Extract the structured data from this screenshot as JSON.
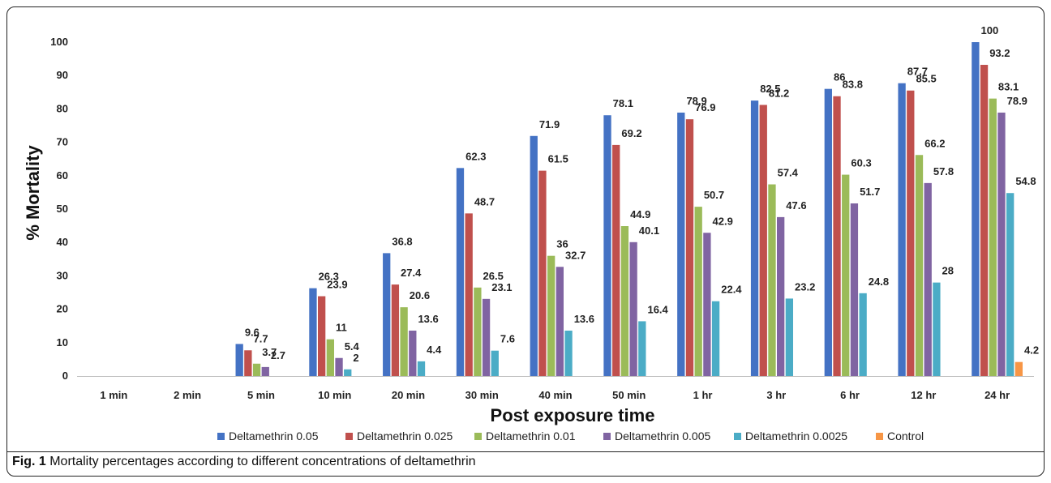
{
  "figure": {
    "caption_label": "Fig. 1",
    "caption_text": " Mortality percentages according to different concentrations of deltamethrin"
  },
  "chart_data": {
    "type": "bar",
    "title": "",
    "xlabel": "Post exposure time",
    "ylabel": "% Mortality",
    "ylim": [
      0,
      100
    ],
    "yticks": [
      0,
      10,
      20,
      30,
      40,
      50,
      60,
      70,
      80,
      90,
      100
    ],
    "grid": false,
    "legend_position": "bottom",
    "categories": [
      "1 min",
      "2 min",
      "5 min",
      "10 min",
      "20 min",
      "30 min",
      "40 min",
      "50 min",
      "1 hr",
      "3 hr",
      "6 hr",
      "12 hr",
      "24 hr"
    ],
    "series": [
      {
        "name": "Deltamethrin 0.05",
        "color": "#4472C4",
        "values": [
          0,
          0,
          9.6,
          26.3,
          36.8,
          62.3,
          71.9,
          78.1,
          78.9,
          82.5,
          86,
          87.7,
          100
        ],
        "labels": [
          null,
          null,
          "9.6",
          "26.3",
          "36.8",
          "62.3",
          "71.9",
          "78.1",
          "78.9",
          "82.5",
          "86",
          "87.7",
          "100"
        ]
      },
      {
        "name": "Deltamethrin 0.025",
        "color": "#C0504D",
        "values": [
          0,
          0,
          7.7,
          23.9,
          27.4,
          48.7,
          61.5,
          69.2,
          76.9,
          81.2,
          83.8,
          85.5,
          93.2
        ],
        "labels": [
          null,
          null,
          "7.7",
          "23.9",
          "27.4",
          "48.7",
          "61.5",
          "69.2",
          "76.9",
          "81.2",
          "83.8",
          "85.5",
          "93.2"
        ]
      },
      {
        "name": "Deltamethrin 0.01",
        "color": "#9BBB59",
        "values": [
          0,
          0,
          3.7,
          11,
          20.6,
          26.5,
          36,
          44.9,
          50.7,
          57.4,
          60.3,
          66.2,
          83.1
        ],
        "labels": [
          null,
          null,
          "3.7",
          "11",
          "20.6",
          "26.5",
          "36",
          "44.9",
          "50.7",
          "57.4",
          "60.3",
          "66.2",
          "83.1"
        ]
      },
      {
        "name": "Deltamethrin 0.005",
        "color": "#8064A2",
        "values": [
          0,
          0,
          2.7,
          5.4,
          13.6,
          23.1,
          32.7,
          40.1,
          42.9,
          47.6,
          51.7,
          57.8,
          78.9
        ],
        "labels": [
          null,
          null,
          "2.7",
          "5.4",
          "13.6",
          "23.1",
          "32.7",
          "40.1",
          "42.9",
          "47.6",
          "51.7",
          "57.8",
          "78.9"
        ]
      },
      {
        "name": "Deltamethrin 0.0025",
        "color": "#4BACC6",
        "values": [
          0,
          0,
          0,
          2,
          4.4,
          7.6,
          13.6,
          16.4,
          22.4,
          23.2,
          24.8,
          28,
          54.8
        ],
        "labels": [
          null,
          null,
          null,
          "2",
          "4.4",
          "7.6",
          "13.6",
          "16.4",
          "22.4",
          "23.2",
          "24.8",
          "28",
          "54.8"
        ]
      },
      {
        "name": "Control",
        "color": "#F79646",
        "values": [
          0,
          0,
          0,
          0,
          0,
          0,
          0,
          0,
          0,
          0,
          0,
          0,
          4.2
        ],
        "labels": [
          null,
          null,
          null,
          null,
          null,
          null,
          null,
          null,
          null,
          null,
          null,
          null,
          "4.2"
        ]
      }
    ]
  }
}
